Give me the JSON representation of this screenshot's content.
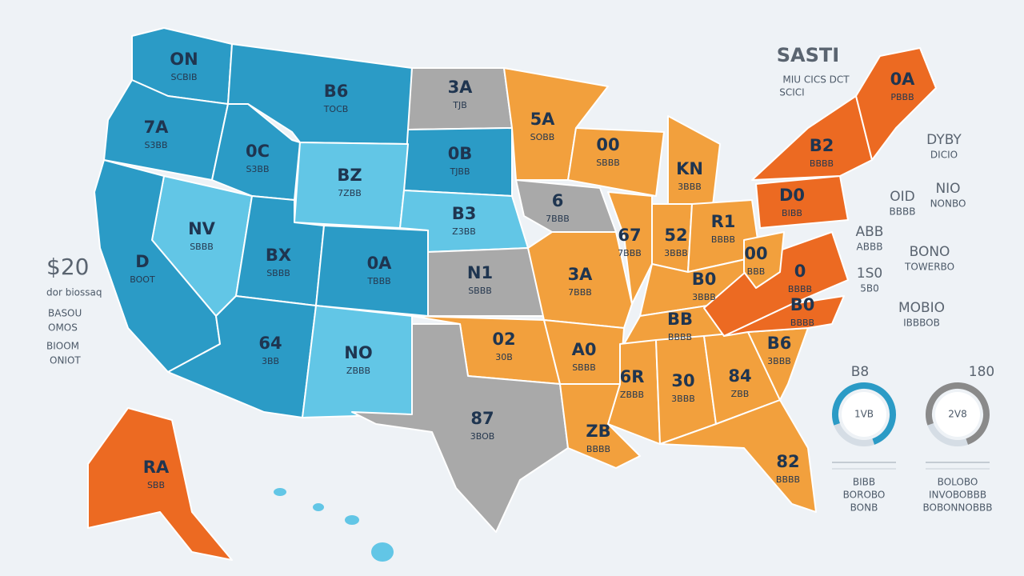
{
  "header": {
    "title": "SASTI",
    "lines": [
      "MIU CICS DCT",
      "SCICI"
    ]
  },
  "left_panel": {
    "value": "$20",
    "lines": [
      "dor biossaq",
      "BASOU",
      "OMOS",
      "BIOOM",
      "ONIOT"
    ]
  },
  "regions": [
    {
      "label": "ON",
      "sub": "SCBIB"
    },
    {
      "label": "B6",
      "sub": "TOCB"
    },
    {
      "label": "3A",
      "sub": "TJB"
    },
    {
      "label": "7A",
      "sub": "S3BB"
    },
    {
      "label": "0C",
      "sub": "S3BB"
    },
    {
      "label": "0B",
      "sub": "TJBB"
    },
    {
      "label": "BZ",
      "sub": "7ZBB"
    },
    {
      "label": "B3",
      "sub": "Z3BB"
    },
    {
      "label": "NV",
      "sub": "SBBB"
    },
    {
      "label": "D",
      "sub": "BOOT"
    },
    {
      "label": "BX",
      "sub": "SBBB"
    },
    {
      "label": "0A",
      "sub": "TBBB"
    },
    {
      "label": "N1",
      "sub": "SBBB"
    },
    {
      "label": "64",
      "sub": "3BB"
    },
    {
      "label": "NO",
      "sub": "ZBBB"
    },
    {
      "label": "02",
      "sub": "30B"
    },
    {
      "label": "87",
      "sub": "3BOB"
    },
    {
      "label": "5A",
      "sub": "SOBB"
    },
    {
      "label": "6",
      "sub": "7BBB"
    },
    {
      "label": "00",
      "sub": "SBBB"
    },
    {
      "label": "KN",
      "sub": "3BBB"
    },
    {
      "label": "3A",
      "sub": "7BBB"
    },
    {
      "label": "A0",
      "sub": "SBBB"
    },
    {
      "label": "67",
      "sub": "7BBB"
    },
    {
      "label": "52",
      "sub": "3BBB"
    },
    {
      "label": "R1",
      "sub": "BBBB"
    },
    {
      "label": "B0",
      "sub": "3BBB"
    },
    {
      "label": "BB",
      "sub": "BBBB"
    },
    {
      "label": "6R",
      "sub": "ZBBB"
    },
    {
      "label": "30",
      "sub": "3BBB"
    },
    {
      "label": "84",
      "sub": "ZBB"
    },
    {
      "label": "ZB",
      "sub": "BBBB"
    },
    {
      "label": "82",
      "sub": "BBBB"
    },
    {
      "label": "B6",
      "sub": "3BBB"
    },
    {
      "label": "B0",
      "sub": "BBBB"
    },
    {
      "label": "0",
      "sub": "BBBB"
    },
    {
      "label": "00",
      "sub": "BBB"
    },
    {
      "label": "D0",
      "sub": "BIBB"
    },
    {
      "label": "B2",
      "sub": "BBBB"
    },
    {
      "label": "0A",
      "sub": "PBBB"
    },
    {
      "label": "RA",
      "sub": "SBB"
    }
  ],
  "right_labels": [
    {
      "label": "DYBY",
      "sub": "DICIO"
    },
    {
      "label": "OID",
      "sub": "BBBB"
    },
    {
      "label": "NIO",
      "sub": "NONBO"
    },
    {
      "label": "ABB",
      "sub": "ABBB"
    },
    {
      "label": "BONO",
      "sub": "TOWERBO"
    },
    {
      "label": "1S0",
      "sub": "5B0"
    },
    {
      "label": "MOBIO",
      "sub": "IBBBOB"
    }
  ],
  "donuts": [
    {
      "top": "B8",
      "center": "1VB",
      "lines": [
        "BIBB",
        "BOROBO",
        "BONB"
      ]
    },
    {
      "top": "180",
      "center": "2V8",
      "lines": [
        "BOLOBO",
        "INVOBOBBB",
        "BOBONNOBBB"
      ]
    }
  ]
}
